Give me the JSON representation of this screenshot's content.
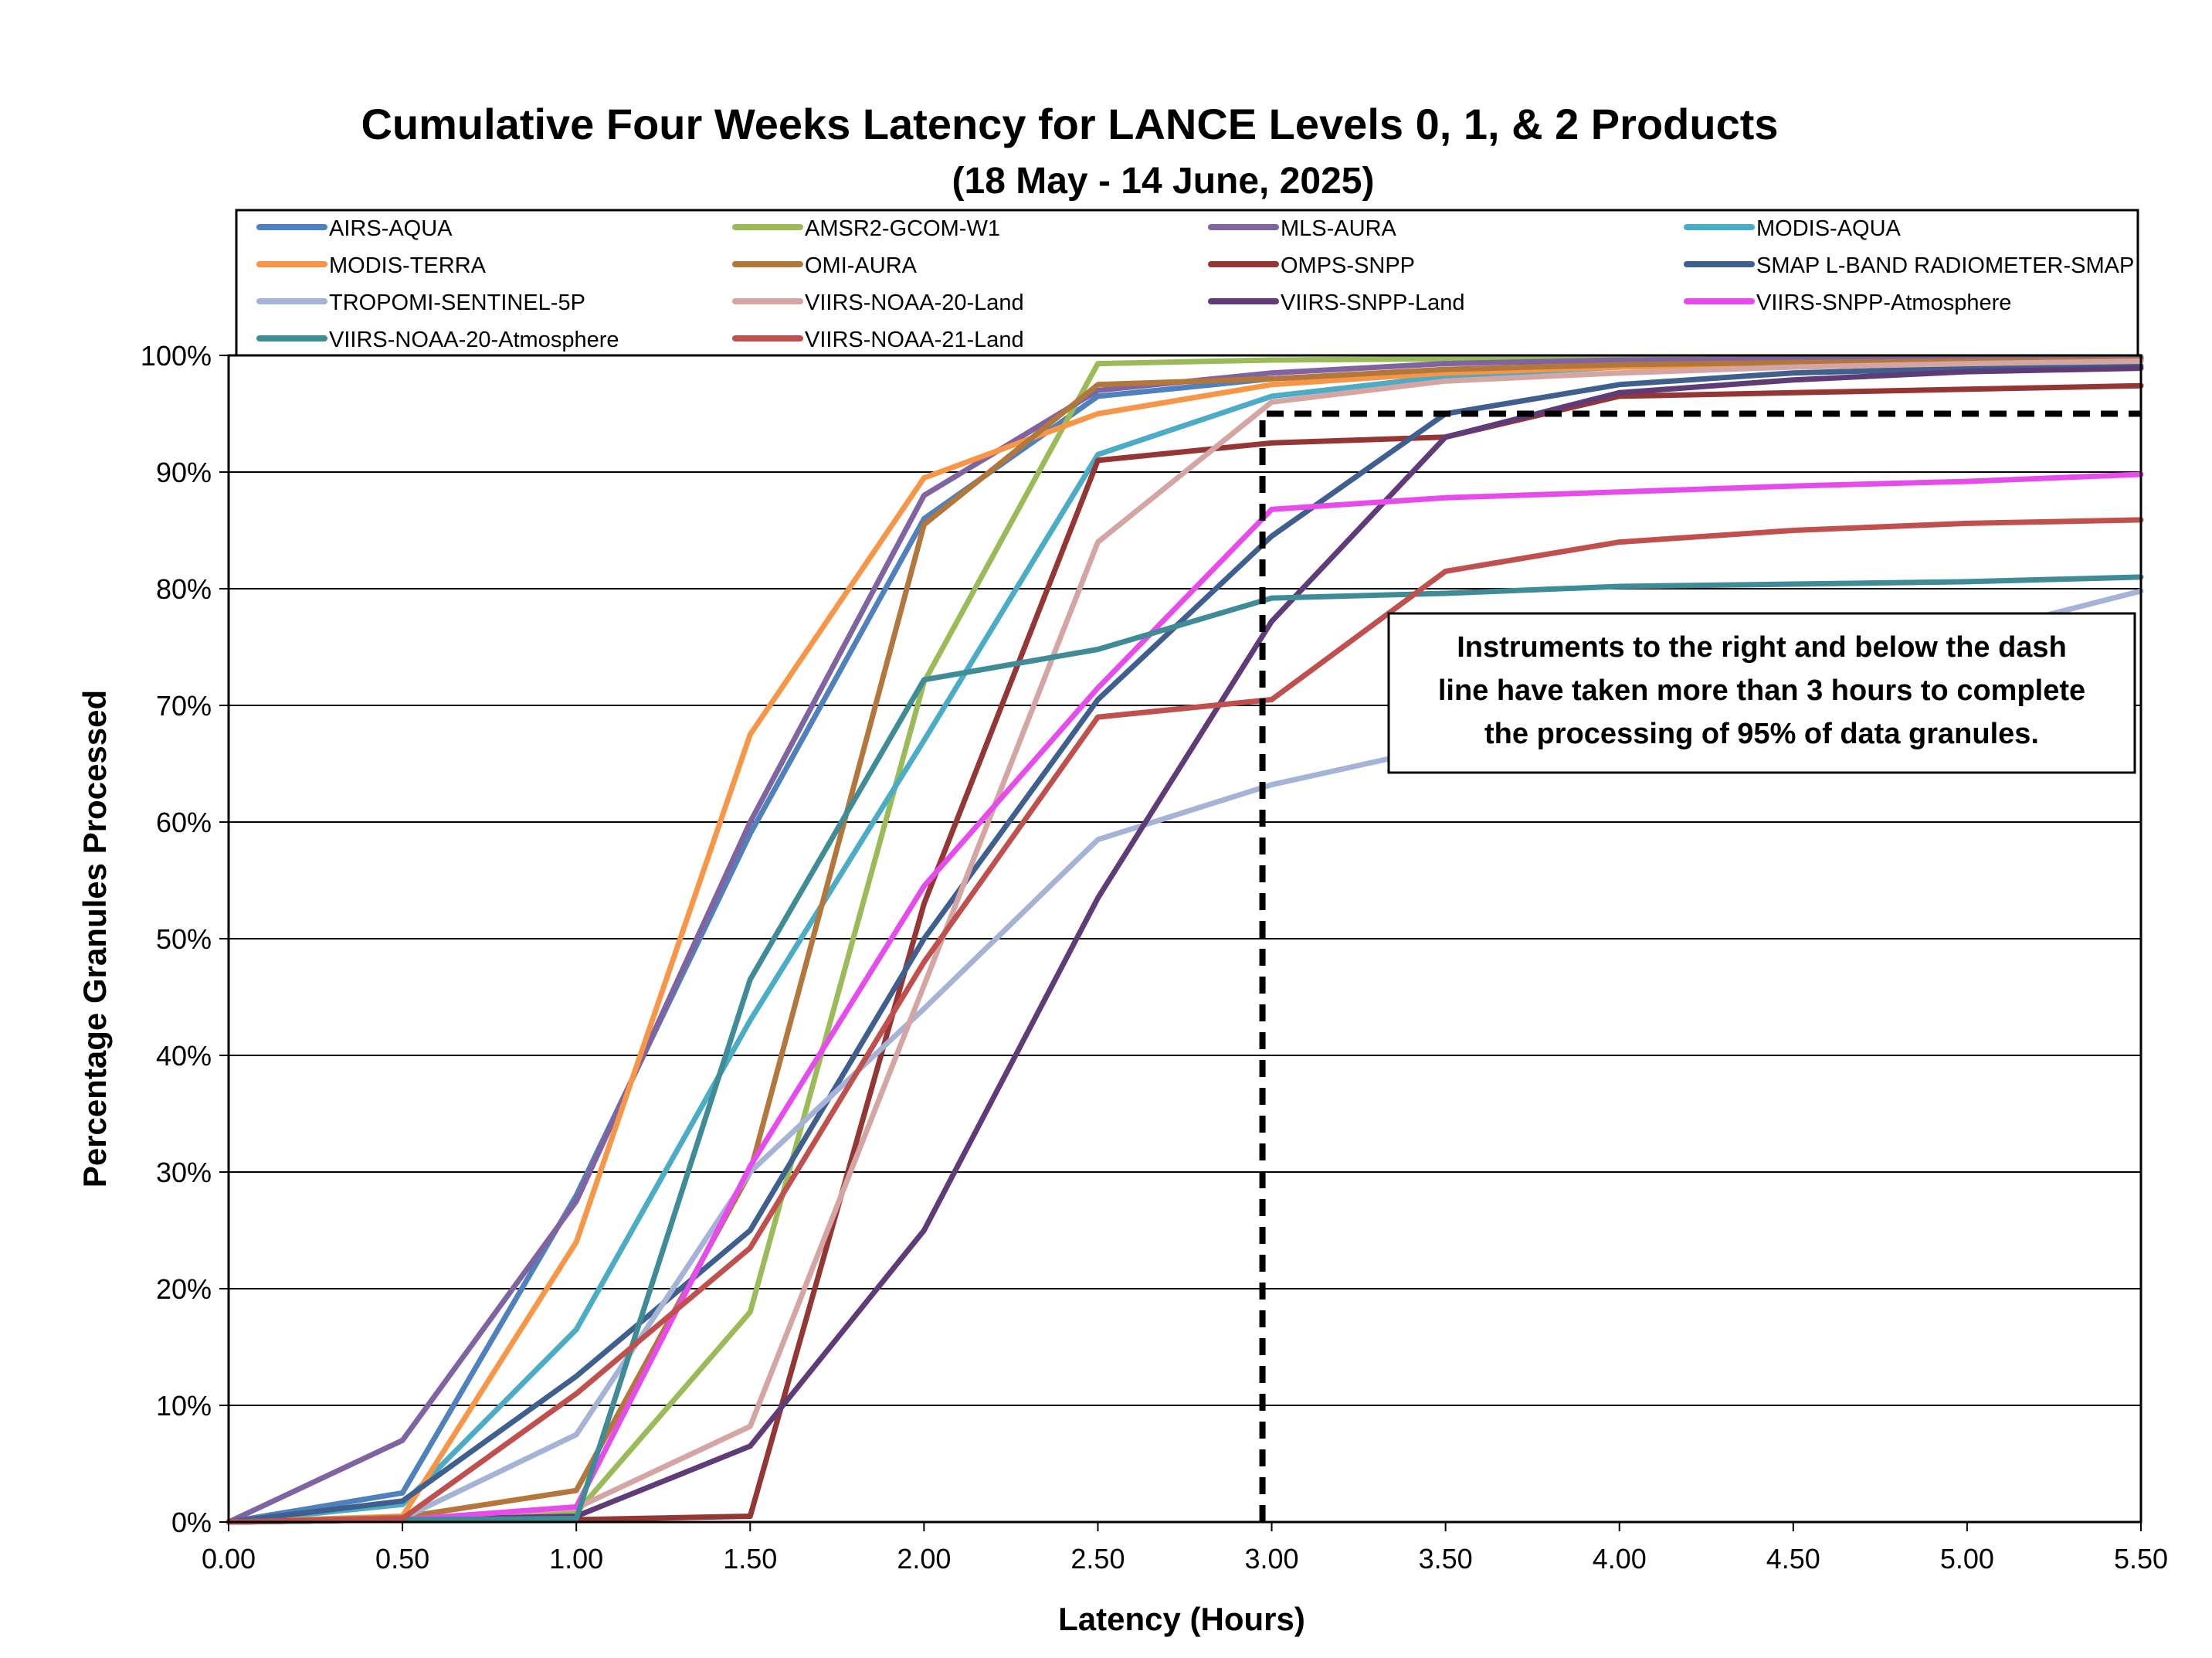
{
  "chart_data": {
    "type": "line",
    "title": "Cumulative Four Weeks Latency  for LANCE Levels 0, 1, & 2 Products",
    "subtitle": "(18  May   -  14  June,  2025)",
    "xlabel": "Latency (Hours)",
    "ylabel": "Percentage Granules Processed",
    "x": [
      0,
      0.5,
      1.0,
      1.5,
      2.0,
      2.5,
      3.0,
      3.5,
      4.0,
      4.5,
      5.0,
      5.5
    ],
    "xlim": [
      0,
      5.5
    ],
    "ylim": [
      0,
      100
    ],
    "x_ticks": [
      "0.00",
      "0.50",
      "1.00",
      "1.50",
      "2.00",
      "2.50",
      "3.00",
      "3.50",
      "4.00",
      "4.50",
      "5.00",
      "5.50"
    ],
    "y_ticks": [
      "0%",
      "10%",
      "20%",
      "30%",
      "40%",
      "50%",
      "60%",
      "70%",
      "80%",
      "90%",
      "100%"
    ],
    "grid": "horizontal",
    "legend_position": "top",
    "series": [
      {
        "name": "AIRS-AQUA",
        "color": "#4F81BD",
        "values": [
          0,
          2.5,
          28,
          59,
          86,
          96.5,
          98,
          98.7,
          99.2,
          99.5,
          99.6,
          99.7
        ]
      },
      {
        "name": "AMSR2-GCOM-W1",
        "color": "#9BBB59",
        "values": [
          0,
          0.3,
          0.8,
          18,
          72,
          99.3,
          99.6,
          99.7,
          99.8,
          99.8,
          99.8,
          99.9
        ]
      },
      {
        "name": "MLS-AURA",
        "color": "#8064A2",
        "values": [
          0,
          7,
          27.5,
          60,
          88,
          97,
          98.5,
          99.3,
          99.6,
          99.7,
          99.8,
          99.8
        ]
      },
      {
        "name": "MODIS-AQUA",
        "color": "#4BACC6",
        "values": [
          0,
          1.5,
          16.5,
          43,
          67,
          91.5,
          96.5,
          98.2,
          99,
          99.3,
          99.5,
          99.6
        ]
      },
      {
        "name": "MODIS-TERRA",
        "color": "#F79646",
        "values": [
          0,
          0.5,
          24,
          67.5,
          89.5,
          95,
          97.5,
          98.5,
          99,
          99.3,
          99.5,
          99.6
        ]
      },
      {
        "name": "OMI-AURA",
        "color": "#B3763B",
        "values": [
          0,
          0.4,
          2.7,
          30,
          85.5,
          97.5,
          98,
          98.8,
          99.2,
          99.4,
          99.5,
          99.6
        ]
      },
      {
        "name": "OMPS-SNPP",
        "color": "#943634",
        "values": [
          0,
          0.2,
          0.2,
          0.5,
          53,
          91,
          92.5,
          93,
          96.5,
          96.8,
          97.1,
          97.4
        ]
      },
      {
        "name": "SMAP L-BAND RADIOMETER-SMAP",
        "color": "#3F5F8F",
        "values": [
          0,
          1.8,
          12.5,
          25,
          50,
          70.5,
          84.5,
          95,
          97.5,
          98.5,
          98.9,
          99.1
        ]
      },
      {
        "name": "TROPOMI-SENTINEL-5P",
        "color": "#A5B4D6",
        "values": [
          0,
          0.3,
          7.5,
          30,
          44,
          58.5,
          63.2,
          66.5,
          70,
          73,
          76,
          79.8
        ]
      },
      {
        "name": "VIIRS-NOAA-20-Land",
        "color": "#D4A5A3",
        "values": [
          0,
          0.2,
          1.2,
          8.2,
          46,
          84,
          96,
          97.8,
          98.5,
          99,
          99.3,
          99.5
        ]
      },
      {
        "name": "VIIRS-SNPP-Land",
        "color": "#5F3C78",
        "values": [
          0,
          0.2,
          0.5,
          6.5,
          25,
          53.5,
          77.2,
          93,
          96.8,
          97.9,
          98.6,
          98.9
        ]
      },
      {
        "name": "VIIRS-SNPP-Atmosphere",
        "color": "#E64CEB",
        "values": [
          0,
          0.2,
          1.3,
          30.5,
          54.5,
          71.5,
          86.8,
          87.8,
          88.3,
          88.8,
          89.2,
          89.8
        ]
      },
      {
        "name": "VIIRS-NOAA-20-Atmosphere",
        "color": "#3F8C96",
        "values": [
          0,
          0.2,
          0.3,
          46.5,
          72.2,
          74.8,
          79.2,
          79.6,
          80.2,
          80.4,
          80.6,
          81
        ]
      },
      {
        "name": "VIIRS-NOAA-21-Land",
        "color": "#C0504D",
        "values": [
          0,
          0.3,
          11,
          23.5,
          48,
          69,
          70.5,
          81.5,
          84,
          85,
          85.6,
          85.9
        ]
      }
    ],
    "threshold_line": {
      "x": 3.0,
      "y": 95,
      "style": "dashed",
      "color": "#000000"
    },
    "annotation": [
      "Instruments to the right and below the dash",
      "line have taken more than 3 hours to complete",
      "the processing of 95% of data granules."
    ]
  }
}
